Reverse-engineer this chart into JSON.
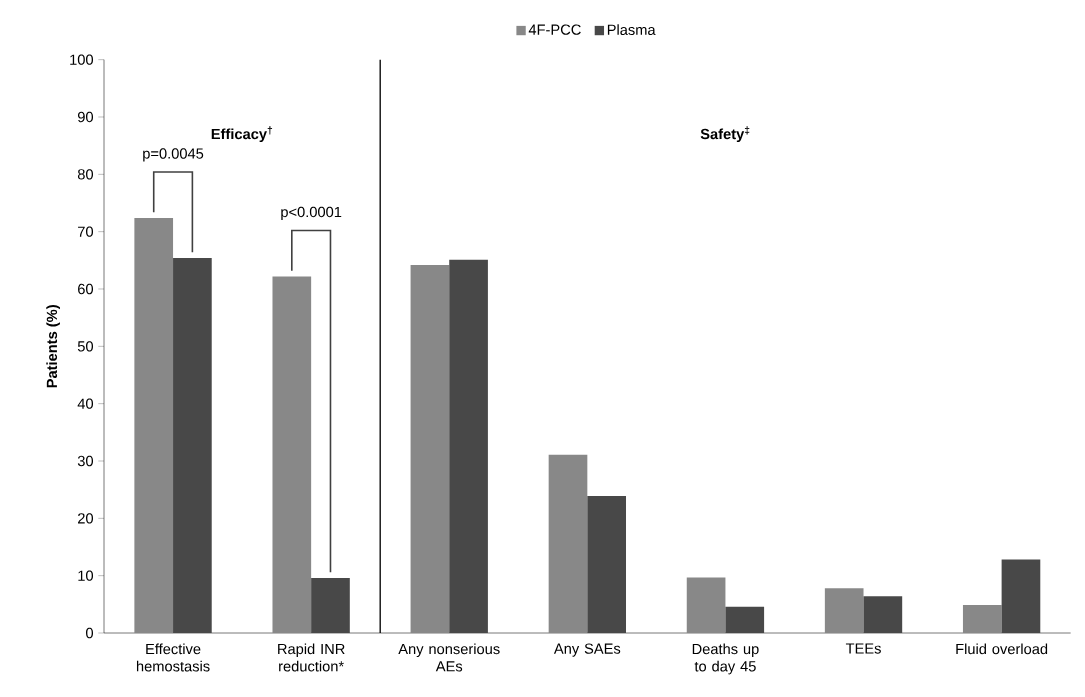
{
  "chart_data": {
    "type": "bar",
    "ylabel": "Patients (%)",
    "categories": [
      "Effective hemostasis",
      "Rapid INR reduction*",
      "Any nonserious AEs",
      "Any SAEs",
      "Deaths up to day 45",
      "TEEs",
      "Fluid overload"
    ],
    "series": [
      {
        "name": "4F-PCC",
        "color": "#888888",
        "values": [
          72.4,
          62.2,
          64.2,
          31.1,
          9.7,
          7.8,
          4.9
        ]
      },
      {
        "name": "Plasma",
        "color": "#484848",
        "values": [
          65.4,
          9.6,
          65.1,
          23.9,
          4.6,
          6.4,
          12.8
        ]
      }
    ],
    "ylim": [
      0,
      100
    ],
    "yticks": [
      0,
      10,
      20,
      30,
      40,
      50,
      60,
      70,
      80,
      90,
      100
    ],
    "annotations": [
      "Efficacy$^{†}$",
      "Safety$^{‡}$",
      "p=0.0045",
      "p<0.0001"
    ],
    "legend": "top",
    "grid": false
  }
}
